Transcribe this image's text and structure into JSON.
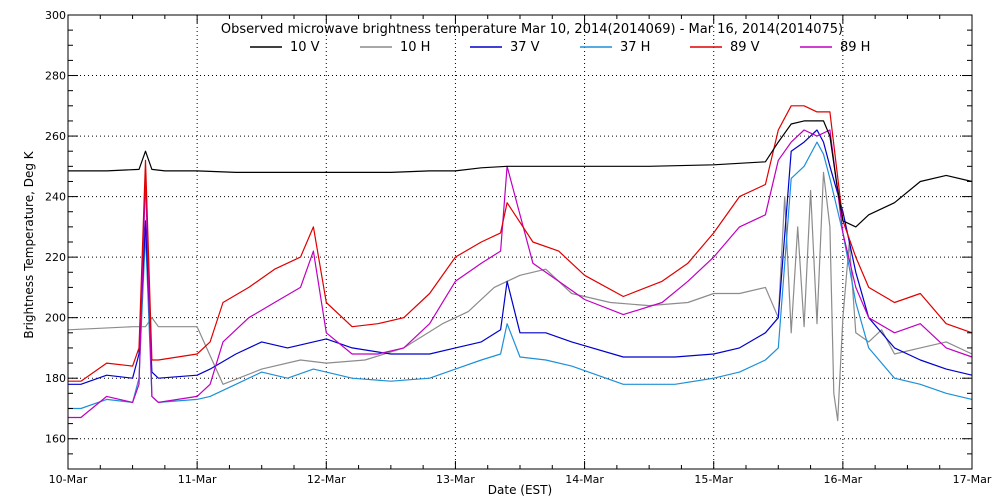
{
  "chart_data": {
    "type": "line",
    "title": "Observed microwave brightness temperature Mar 10, 2014(2014069) - Mar 16, 2014(2014075)",
    "xlabel": "Date (EST)",
    "ylabel": "Brightness Temperature, Deg K",
    "xlim": [
      0,
      7
    ],
    "ylim": [
      150,
      300
    ],
    "x_tick_values": [
      0,
      1,
      2,
      3,
      4,
      5,
      6,
      7
    ],
    "x_tick_labels": [
      "10-Mar",
      "11-Mar",
      "12-Mar",
      "13-Mar",
      "14-Mar",
      "15-Mar",
      "16-Mar",
      "17-Mar"
    ],
    "y_ticks": [
      160,
      180,
      200,
      220,
      240,
      260,
      280,
      300
    ],
    "grid": "dotted",
    "legend_position": "top",
    "series": [
      {
        "name": "10 V",
        "color": "#000000",
        "x": [
          0,
          0.3,
          0.55,
          0.6,
          0.65,
          0.75,
          1.0,
          1.3,
          1.6,
          1.9,
          2.2,
          2.5,
          2.8,
          3.0,
          3.2,
          3.4,
          3.6,
          4.0,
          4.5,
          5.0,
          5.2,
          5.4,
          5.5,
          5.6,
          5.7,
          5.85,
          5.9,
          5.95,
          6.0,
          6.1,
          6.2,
          6.4,
          6.6,
          6.8,
          7.0
        ],
        "y": [
          248.5,
          248.5,
          249,
          255,
          249,
          248.5,
          248.5,
          248,
          248,
          248,
          248,
          248,
          248.5,
          248.5,
          249.5,
          250,
          250,
          250,
          250,
          250.5,
          251,
          251.5,
          258,
          264,
          265,
          265,
          260,
          245,
          232,
          230,
          234,
          238,
          245,
          247,
          245
        ]
      },
      {
        "name": "10 H",
        "color": "#8c8c8c",
        "x": [
          0,
          0.5,
          0.6,
          0.65,
          0.7,
          1.0,
          1.2,
          1.5,
          1.8,
          2.0,
          2.3,
          2.6,
          2.9,
          3.1,
          3.3,
          3.5,
          3.7,
          3.9,
          4.2,
          4.5,
          4.8,
          5.0,
          5.2,
          5.4,
          5.5,
          5.55,
          5.6,
          5.65,
          5.7,
          5.75,
          5.8,
          5.85,
          5.9,
          5.93,
          5.96,
          6.0,
          6.05,
          6.1,
          6.2,
          6.3,
          6.4,
          6.6,
          6.8,
          7.0
        ],
        "y": [
          196,
          197,
          197,
          200,
          197,
          197,
          178,
          183,
          186,
          185,
          186,
          190,
          198,
          202,
          210,
          214,
          216,
          208,
          205,
          204,
          205,
          208,
          208,
          210,
          200,
          240,
          195,
          230,
          197,
          242,
          198,
          248,
          230,
          175,
          166,
          200,
          225,
          195,
          192,
          196,
          188,
          190,
          192,
          188
        ]
      },
      {
        "name": "37 V",
        "color": "#0000cc",
        "x": [
          0,
          0.1,
          0.3,
          0.5,
          0.55,
          0.6,
          0.65,
          0.7,
          1.0,
          1.1,
          1.3,
          1.5,
          1.7,
          1.9,
          2.0,
          2.2,
          2.5,
          2.8,
          3.0,
          3.2,
          3.35,
          3.4,
          3.5,
          3.7,
          3.9,
          4.3,
          4.7,
          5.0,
          5.2,
          5.4,
          5.5,
          5.6,
          5.7,
          5.8,
          5.85,
          5.9,
          6.0,
          6.1,
          6.2,
          6.4,
          6.6,
          6.8,
          7.0
        ],
        "y": [
          178,
          178,
          181,
          180,
          188,
          232,
          182,
          180,
          181,
          183,
          188,
          192,
          190,
          192,
          193,
          190,
          188,
          188,
          190,
          192,
          196,
          212,
          195,
          195,
          192,
          187,
          187,
          188,
          190,
          195,
          200,
          255,
          258,
          262,
          258,
          250,
          235,
          215,
          200,
          190,
          186,
          183,
          181
        ]
      },
      {
        "name": "37 H",
        "color": "#1e90d8",
        "x": [
          0,
          0.1,
          0.3,
          0.5,
          0.55,
          0.6,
          0.65,
          0.7,
          1.0,
          1.1,
          1.3,
          1.5,
          1.7,
          1.9,
          2.0,
          2.2,
          2.5,
          2.8,
          3.0,
          3.2,
          3.35,
          3.4,
          3.5,
          3.7,
          3.9,
          4.3,
          4.7,
          5.0,
          5.2,
          5.4,
          5.5,
          5.6,
          5.7,
          5.8,
          5.85,
          5.9,
          6.0,
          6.1,
          6.2,
          6.4,
          6.6,
          6.8,
          7.0
        ],
        "y": [
          170,
          170,
          173,
          172,
          180,
          228,
          174,
          172,
          173,
          174,
          178,
          182,
          180,
          183,
          182,
          180,
          179,
          180,
          183,
          186,
          188,
          198,
          187,
          186,
          184,
          178,
          178,
          180,
          182,
          186,
          190,
          246,
          250,
          258,
          254,
          246,
          228,
          205,
          190,
          180,
          178,
          175,
          173
        ]
      },
      {
        "name": "89 V",
        "color": "#e00000",
        "x": [
          0,
          0.1,
          0.3,
          0.5,
          0.55,
          0.6,
          0.65,
          0.7,
          1.0,
          1.1,
          1.2,
          1.4,
          1.6,
          1.8,
          1.9,
          2.0,
          2.2,
          2.4,
          2.6,
          2.8,
          3.0,
          3.2,
          3.35,
          3.4,
          3.6,
          3.8,
          4.0,
          4.3,
          4.6,
          4.8,
          5.0,
          5.2,
          5.4,
          5.5,
          5.6,
          5.7,
          5.8,
          5.9,
          6.0,
          6.1,
          6.2,
          6.4,
          6.6,
          6.8,
          7.0
        ],
        "y": [
          179,
          179,
          185,
          184,
          190,
          252,
          186,
          186,
          188,
          192,
          205,
          210,
          216,
          220,
          230,
          205,
          197,
          198,
          200,
          208,
          220,
          225,
          228,
          238,
          225,
          222,
          214,
          207,
          212,
          218,
          228,
          240,
          244,
          262,
          270,
          270,
          268,
          268,
          232,
          220,
          210,
          205,
          208,
          198,
          195
        ]
      },
      {
        "name": "89 H",
        "color": "#c000c0",
        "x": [
          0,
          0.1,
          0.3,
          0.5,
          0.55,
          0.6,
          0.65,
          0.7,
          1.0,
          1.1,
          1.2,
          1.4,
          1.6,
          1.8,
          1.9,
          2.0,
          2.2,
          2.4,
          2.6,
          2.8,
          3.0,
          3.2,
          3.35,
          3.4,
          3.6,
          3.8,
          4.0,
          4.3,
          4.6,
          4.8,
          5.0,
          5.2,
          5.4,
          5.5,
          5.6,
          5.7,
          5.8,
          5.9,
          6.0,
          6.1,
          6.2,
          6.4,
          6.6,
          6.8,
          7.0
        ],
        "y": [
          167,
          167,
          174,
          172,
          178,
          246,
          174,
          172,
          174,
          178,
          192,
          200,
          205,
          210,
          222,
          195,
          188,
          188,
          190,
          198,
          212,
          218,
          222,
          250,
          218,
          212,
          206,
          201,
          205,
          212,
          220,
          230,
          234,
          252,
          258,
          262,
          260,
          262,
          228,
          210,
          200,
          195,
          198,
          190,
          187
        ]
      }
    ]
  }
}
